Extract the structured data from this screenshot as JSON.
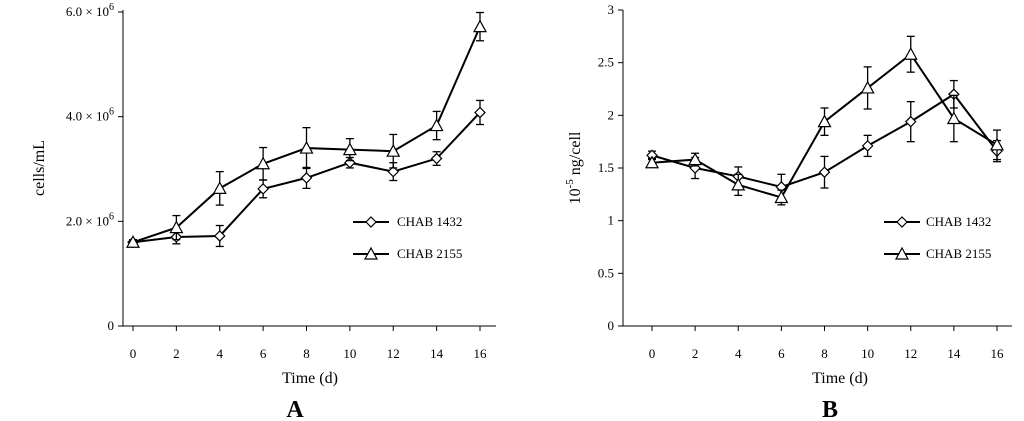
{
  "chart_data": [
    {
      "type": "line",
      "panel_label": "A",
      "xlabel": "Time (d)",
      "ylabel": "cells/mL",
      "x": [
        0,
        2,
        4,
        6,
        8,
        10,
        12,
        14,
        16
      ],
      "xlim": [
        0,
        16
      ],
      "ylim": [
        0,
        6000000
      ],
      "yticks": [
        0,
        2000000,
        4000000,
        6000000
      ],
      "ytick_labels": [
        "0",
        "2.0 × 10",
        "4.0 × 10",
        "6.0 × 10"
      ],
      "ytick_exponents": [
        "",
        "6",
        "6",
        "6"
      ],
      "legend_position": "center-right",
      "series": [
        {
          "name": "CHAB 1432",
          "marker": "diamond",
          "values": [
            1600000,
            1700000,
            1720000,
            2620000,
            2830000,
            3120000,
            2950000,
            3200000,
            4080000
          ],
          "errors": [
            50000,
            130000,
            200000,
            170000,
            200000,
            100000,
            170000,
            130000,
            230000
          ]
        },
        {
          "name": "CHAB 2155",
          "marker": "triangle",
          "values": [
            1600000,
            1880000,
            2630000,
            3100000,
            3400000,
            3370000,
            3340000,
            3830000,
            5720000
          ],
          "errors": [
            40000,
            230000,
            320000,
            310000,
            390000,
            210000,
            320000,
            270000,
            270000
          ]
        }
      ]
    },
    {
      "type": "line",
      "panel_label": "B",
      "xlabel": "Time (d)",
      "ylabel": "10",
      "ylabel_exponent": "-5",
      "ylabel_suffix": " ng/cell",
      "x": [
        0,
        2,
        4,
        6,
        8,
        10,
        12,
        14,
        16
      ],
      "xlim": [
        0,
        16
      ],
      "ylim": [
        0,
        3
      ],
      "yticks": [
        0,
        0.5,
        1,
        1.5,
        2,
        2.5,
        3
      ],
      "ytick_labels": [
        "0",
        "0.5",
        "1",
        "1.5",
        "2",
        "2.5",
        "3"
      ],
      "legend_position": "center-right",
      "series": [
        {
          "name": "CHAB 1432",
          "marker": "diamond",
          "values": [
            1.62,
            1.5,
            1.42,
            1.32,
            1.46,
            1.71,
            1.94,
            2.2,
            1.66
          ],
          "errors": [
            0.04,
            0.1,
            0.09,
            0.12,
            0.15,
            0.1,
            0.19,
            0.13,
            0.1
          ]
        },
        {
          "name": "CHAB 2155",
          "marker": "triangle",
          "values": [
            1.55,
            1.58,
            1.34,
            1.22,
            1.94,
            2.26,
            2.58,
            1.97,
            1.72
          ],
          "errors": [
            0.04,
            0.06,
            0.1,
            0.07,
            0.13,
            0.2,
            0.17,
            0.22,
            0.14
          ]
        }
      ]
    }
  ]
}
